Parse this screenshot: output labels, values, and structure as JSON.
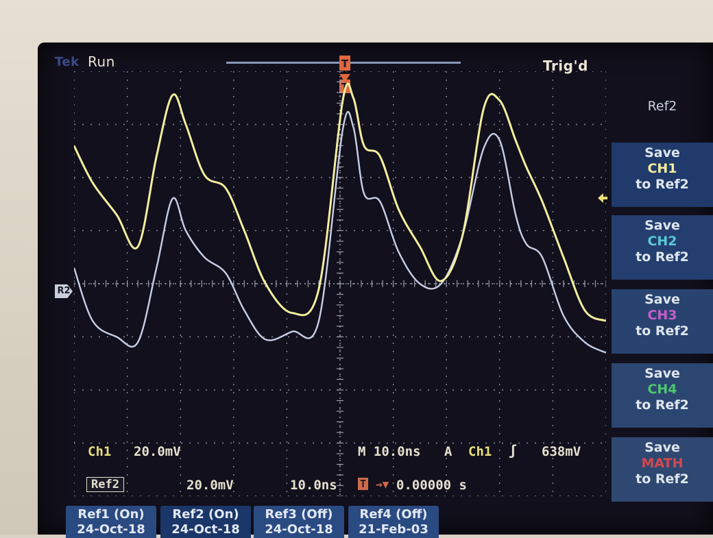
{
  "header": {
    "brand": "Tek",
    "acq_state": "Run",
    "trigger_status": "Trig'd"
  },
  "colors": {
    "ch1": "#f3ee9e",
    "ref2": "#c8cfe6",
    "ch2": "#5ac9d6",
    "ch3": "#c45ec9",
    "ch4": "#4cc86e",
    "math": "#d4494d",
    "trigger": "#e0683f"
  },
  "side_menu": {
    "title": "Ref2",
    "buttons": [
      {
        "top": "Save",
        "src": "CH1",
        "bottom": "to Ref2"
      },
      {
        "top": "Save",
        "src": "CH2",
        "bottom": "to Ref2"
      },
      {
        "top": "Save",
        "src": "CH3",
        "bottom": "to Ref2"
      },
      {
        "top": "Save",
        "src": "CH4",
        "bottom": "to Ref2"
      },
      {
        "top": "Save",
        "src": "MATH",
        "bottom": "to Ref2"
      }
    ]
  },
  "readouts": {
    "ch1_label": "Ch1",
    "ch1_scale": "20.0mV",
    "timebase": "M 10.0ns",
    "trig_mode": "A",
    "trig_source": "Ch1",
    "trig_slope": "ʃ",
    "trig_level": "638mV",
    "ref2_label": "Ref2",
    "ref2_volts": "20.0mV",
    "ref2_time": "10.0ns",
    "trig_pos_icon": "T",
    "trig_pos_arrow": "→▼",
    "trig_pos": "0.00000 s",
    "r2_marker": "R2"
  },
  "ref_tabs": [
    {
      "label": "Ref1 (On)",
      "date": "24-Oct-18"
    },
    {
      "label": "Ref2 (On)",
      "date": "24-Oct-18"
    },
    {
      "label": "Ref3 (Off)",
      "date": "24-Oct-18"
    },
    {
      "label": "Ref4 (Off)",
      "date": "21-Feb-03"
    }
  ],
  "chart_data": {
    "type": "line",
    "grid": true,
    "divisions": {
      "x": 10,
      "y": 8
    },
    "series": [
      {
        "name": "Ch1",
        "color": "#f3ee9e",
        "x": [
          0.0,
          0.35,
          0.8,
          1.2,
          1.55,
          1.85,
          2.1,
          2.45,
          2.85,
          3.2,
          3.6,
          4.1,
          4.6,
          5.05,
          5.25,
          5.45,
          5.75,
          6.1,
          6.5,
          6.9,
          7.3,
          7.7,
          8.0,
          8.3,
          8.5,
          8.8,
          9.2,
          9.6,
          10.0
        ],
        "y": [
          2.6,
          1.9,
          1.3,
          0.7,
          2.4,
          3.55,
          3.0,
          2.05,
          1.8,
          1.0,
          0.0,
          -0.55,
          -0.1,
          3.45,
          3.5,
          2.6,
          2.4,
          1.4,
          0.7,
          0.05,
          0.9,
          3.3,
          3.45,
          2.7,
          2.2,
          1.55,
          0.5,
          -0.5,
          -0.7
        ]
      },
      {
        "name": "Ref2",
        "color": "#c8cfe6",
        "x": [
          0.0,
          0.35,
          0.8,
          1.2,
          1.55,
          1.85,
          2.1,
          2.45,
          2.85,
          3.2,
          3.6,
          4.1,
          4.6,
          5.05,
          5.25,
          5.45,
          5.75,
          6.1,
          6.5,
          6.9,
          7.3,
          7.7,
          8.0,
          8.3,
          8.5,
          8.8,
          9.2,
          9.6,
          10.0
        ],
        "y": [
          0.3,
          -0.7,
          -1.0,
          -1.1,
          0.3,
          1.6,
          1.0,
          0.5,
          0.2,
          -0.5,
          -1.05,
          -0.9,
          -0.7,
          2.9,
          2.95,
          1.7,
          1.55,
          0.6,
          0.0,
          0.0,
          0.9,
          2.55,
          2.7,
          1.3,
          0.75,
          0.5,
          -0.6,
          -1.1,
          -1.3
        ]
      }
    ]
  }
}
